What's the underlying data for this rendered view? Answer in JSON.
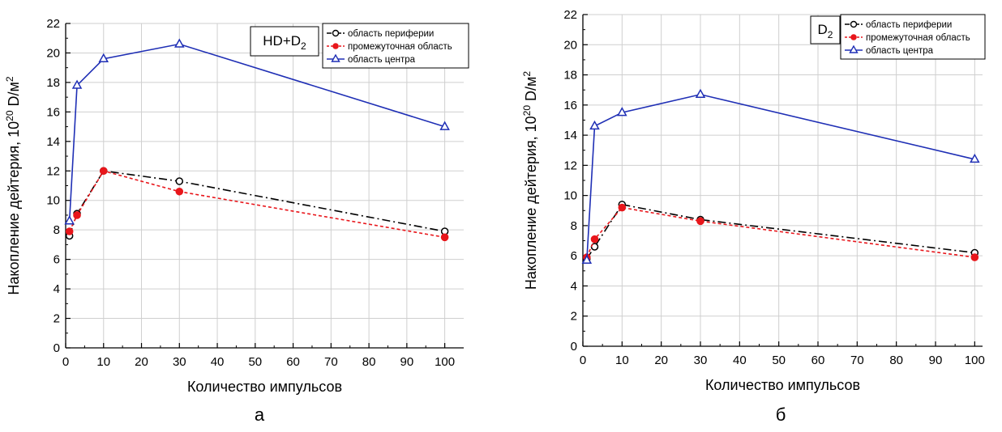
{
  "chart_data": [
    {
      "type": "line",
      "panel_label": "а",
      "tag": {
        "main": "HD+D",
        "sub": "2"
      },
      "xlabel": "Количество импульсов",
      "ylabel": {
        "pre": "Накопление дейтерия, 10",
        "exp": "20",
        "mid": " D/м",
        "exp2": "2"
      },
      "xlim": [
        0,
        105
      ],
      "ylim": [
        0,
        22
      ],
      "xticks": [
        0,
        10,
        20,
        30,
        40,
        50,
        60,
        70,
        80,
        90,
        100
      ],
      "yticks": [
        0,
        2,
        4,
        6,
        8,
        10,
        12,
        14,
        16,
        18,
        20,
        22
      ],
      "grid": true,
      "legend_position": "top-right",
      "series": [
        {
          "name": "область периферии",
          "marker": "open-circle",
          "color": "#000000",
          "line": "dash-dot",
          "x": [
            1,
            3,
            10,
            30,
            100
          ],
          "y": [
            7.6,
            9.1,
            12.0,
            11.3,
            7.9
          ]
        },
        {
          "name": "промежуточная область",
          "marker": "filled-circle",
          "color": "#e8161b",
          "line": "dashed",
          "x": [
            1,
            3,
            10,
            30,
            100
          ],
          "y": [
            7.9,
            9.0,
            12.0,
            10.6,
            7.5
          ]
        },
        {
          "name": "область центра",
          "marker": "open-triangle",
          "color": "#1f2fb5",
          "line": "solid",
          "x": [
            1,
            3,
            10,
            30,
            100
          ],
          "y": [
            8.6,
            17.8,
            19.6,
            20.6,
            15.0
          ]
        }
      ]
    },
    {
      "type": "line",
      "panel_label": "б",
      "tag": {
        "main": "D",
        "sub": "2"
      },
      "xlabel": "Количество импульсов",
      "ylabel": {
        "pre": "Накопление дейтерия, 10",
        "exp": "20",
        "mid": " D/м",
        "exp2": "2"
      },
      "xlim": [
        0,
        102
      ],
      "ylim": [
        0,
        22
      ],
      "xticks": [
        0,
        10,
        20,
        30,
        40,
        50,
        60,
        70,
        80,
        90,
        100
      ],
      "yticks": [
        0,
        2,
        4,
        6,
        8,
        10,
        12,
        14,
        16,
        18,
        20,
        22
      ],
      "grid": true,
      "legend_position": "top-right",
      "series": [
        {
          "name": "область периферии",
          "marker": "open-circle",
          "color": "#000000",
          "line": "dash-dot",
          "x": [
            1,
            3,
            10,
            30,
            100
          ],
          "y": [
            5.8,
            6.6,
            9.4,
            8.4,
            6.2
          ]
        },
        {
          "name": "промежуточная область",
          "marker": "filled-circle",
          "color": "#e8161b",
          "line": "dashed",
          "x": [
            1,
            3,
            10,
            30,
            100
          ],
          "y": [
            5.9,
            7.1,
            9.2,
            8.3,
            5.9
          ]
        },
        {
          "name": "область центра",
          "marker": "open-triangle",
          "color": "#1f2fb5",
          "line": "solid",
          "x": [
            1,
            3,
            10,
            30,
            100
          ],
          "y": [
            5.7,
            14.6,
            15.5,
            16.7,
            12.4
          ]
        }
      ]
    }
  ]
}
